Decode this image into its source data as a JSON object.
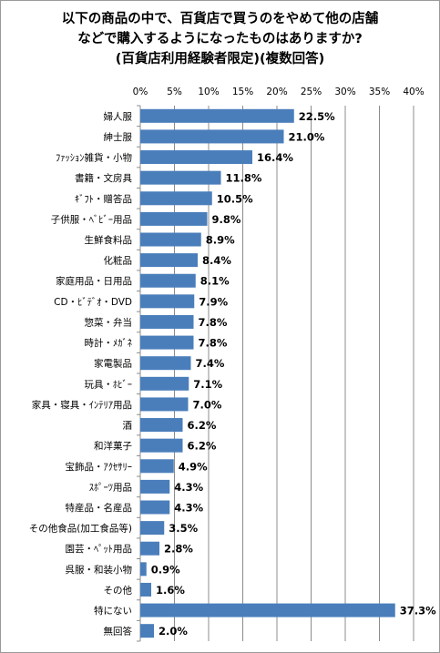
{
  "chart_data": {
    "type": "bar",
    "orientation": "horizontal",
    "title_lines": [
      "以下の商品の中で、百貨店で買うのをやめて他の店舗",
      "などで購入するようになったものはありますか?",
      "(百貨店利用経験者限定)(複数回答)"
    ],
    "xlim": [
      0,
      40
    ],
    "xticks": [
      "0%",
      "5%",
      "10%",
      "15%",
      "20%",
      "25%",
      "30%",
      "35%",
      "40%"
    ],
    "tick_values": [
      0,
      5,
      10,
      15,
      20,
      25,
      30,
      35,
      40
    ],
    "grid": true,
    "bar_color": "#4a7ebb",
    "categories": [
      "婦人服",
      "紳士服",
      "ﾌｧｯｼｮﾝ雑貨・小物",
      "書籍・文房具",
      "ｷﾞﾌﾄ・贈答品",
      "子供服・ﾍﾞﾋﾞｰ用品",
      "生鮮食料品",
      "化粧品",
      "家庭用品・日用品",
      "CD・ﾋﾞﾃﾞｵ・DVD",
      "惣菜・弁当",
      "時計・ﾒｶﾞﾈ",
      "家電製品",
      "玩具・ﾎﾋﾞｰ",
      "家具・寝具・ｲﾝﾃﾘｱ用品",
      "酒",
      "和洋菓子",
      "宝飾品・ｱｸｾｻﾘｰ",
      "ｽﾎﾟｰﾂ用品",
      "特産品・名産品",
      "その他食品(加工食品等)",
      "園芸・ﾍﾟｯﾄ用品",
      "呉服・和装小物",
      "その他",
      "特にない",
      "無回答"
    ],
    "values": [
      22.5,
      21.0,
      16.4,
      11.8,
      10.5,
      9.8,
      8.9,
      8.4,
      8.1,
      7.9,
      7.8,
      7.8,
      7.4,
      7.1,
      7.0,
      6.2,
      6.2,
      4.9,
      4.3,
      4.3,
      3.5,
      2.8,
      0.9,
      1.6,
      37.3,
      2.0
    ],
    "value_labels": [
      "22.5%",
      "21.0%",
      "16.4%",
      "11.8%",
      "10.5%",
      "9.8%",
      "8.9%",
      "8.4%",
      "8.1%",
      "7.9%",
      "7.8%",
      "7.8%",
      "7.4%",
      "7.1%",
      "7.0%",
      "6.2%",
      "6.2%",
      "4.9%",
      "4.3%",
      "4.3%",
      "3.5%",
      "2.8%",
      "0.9%",
      "1.6%",
      "37.3%",
      "2.0%"
    ]
  }
}
